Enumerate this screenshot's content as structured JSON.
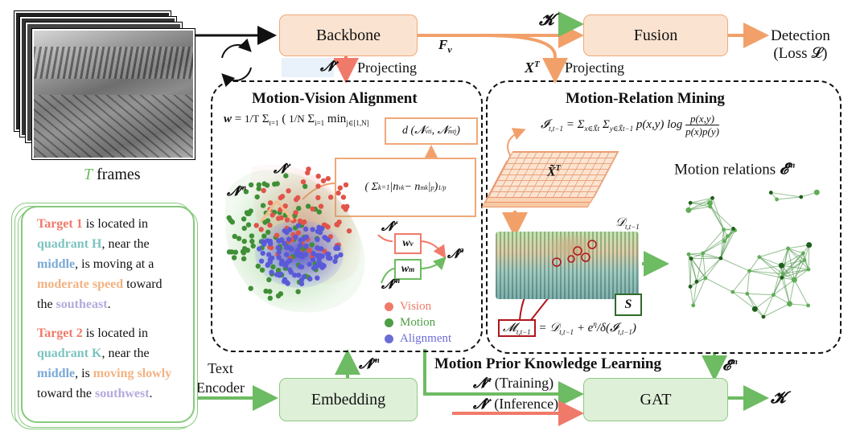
{
  "frames": {
    "count_symbol": "T",
    "label": "frames"
  },
  "backbone": {
    "label": "Backbone"
  },
  "fusion": {
    "label": "Fusion"
  },
  "detection": {
    "line1": "Detection",
    "line2": "(Loss 𝓛)"
  },
  "embedding": {
    "label": "Embedding"
  },
  "gat": {
    "label": "GAT"
  },
  "text_encoder": {
    "line1": "Text",
    "line2": "Encoder"
  },
  "symbols": {
    "K": "𝓚",
    "Fv": "F",
    "Fv_sub": "v",
    "Nv": "𝓝",
    "Nv_sup": "v",
    "Nm_sup": "m",
    "Na_sup": "a",
    "XT": "X",
    "XT_sup": "T",
    "Em": "𝓔",
    "Em_sup": "m",
    "S": "S"
  },
  "projecting": {
    "left": "Projecting",
    "right": "Projecting"
  },
  "mva": {
    "title": "Motion-Vision Alignment",
    "w_v": "w_v",
    "w_m": "w_m",
    "legend": [
      {
        "label": "Vision",
        "color": "#f07a6a"
      },
      {
        "label": "Motion",
        "color": "#4f9e45"
      },
      {
        "label": "Alignment",
        "color": "#6c6cd6"
      }
    ]
  },
  "mrm": {
    "title": "Motion-Relation Mining",
    "relations_label": "Motion relations",
    "D_label": "𝒟",
    "D_sub": "t,t−1",
    "M_eq": "𝓜_{t,t−1} = 𝒟_{t,t−1} + e^η / δ(𝓘_{t,t−1})",
    "I_eq": "𝓘_{t,t−1} = Σ Σ p(x,y) log p(x,y) / p(x)p(y)"
  },
  "mpkl": {
    "title": "Motion Prior Knowledge Learning",
    "training": "(Training)",
    "inference": "(Inference)"
  },
  "targets": [
    {
      "name": "Target 1",
      "t1": " is located in ",
      "quadrant": "quadrant H",
      "t2": ", near the ",
      "pos": "middle",
      "t3": ", is moving at a ",
      "speed": "moderate speed",
      "t4": " toward the ",
      "dir": "southeast",
      "t5": "."
    },
    {
      "name": "Target 2",
      "t1": " is located in ",
      "quadrant": "quadrant K",
      "t2": ", near the ",
      "pos": "middle",
      "t3": ", is ",
      "speed": "moving slowly",
      "t4": " toward the ",
      "dir": "southwest",
      "t5": "."
    }
  ],
  "colors": {
    "orange_arrow": "#f2a06a",
    "green_arrow": "#6dbb62",
    "red_arrow": "#f07a6a",
    "black": "#111111"
  }
}
